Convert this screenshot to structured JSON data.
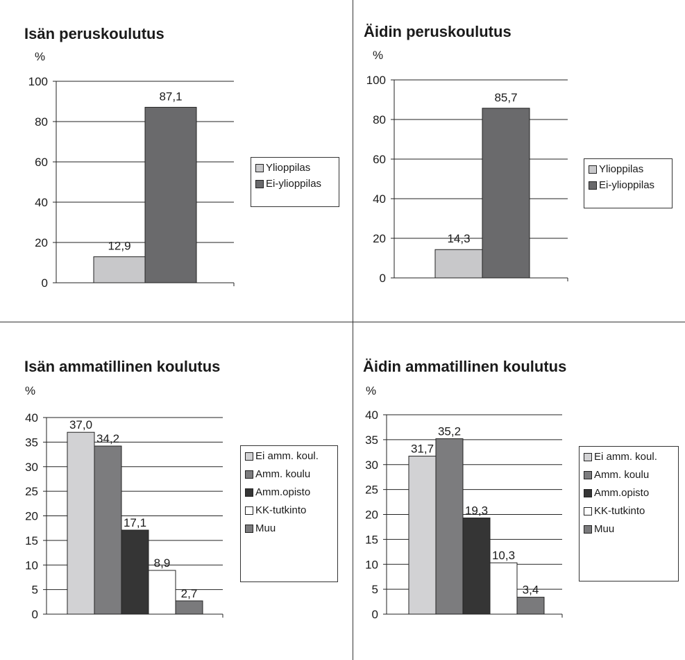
{
  "colors": {
    "ylioppilas": "#c8c8ca",
    "ei_ylioppilas": "#6a6a6c",
    "ei_amm_koul": "#d2d2d4",
    "amm_koulu": "#7c7c7e",
    "amm_opisto": "#353535",
    "kk_tutkinto": "#ffffff",
    "muu": "#7a7a7c"
  },
  "chart_data": [
    {
      "type": "bar",
      "title": "Isän peruskoulutus",
      "ylabel": "%",
      "ylim": [
        0,
        100
      ],
      "yticks": [
        "0",
        "20",
        "40",
        "60",
        "80",
        "100"
      ],
      "grid": true,
      "legend_position": "right",
      "series": [
        {
          "name": "Ylioppilas",
          "values": [
            12.9
          ],
          "label": "12,9",
          "color": "#c8c8ca"
        },
        {
          "name": "Ei-ylioppilas",
          "values": [
            87.1
          ],
          "label": "87,1",
          "color": "#6a6a6c"
        }
      ]
    },
    {
      "type": "bar",
      "title": "Äidin peruskoulutus",
      "ylabel": "%",
      "ylim": [
        0,
        100
      ],
      "yticks": [
        "0",
        "20",
        "40",
        "60",
        "80",
        "100"
      ],
      "grid": true,
      "legend_position": "right",
      "series": [
        {
          "name": "Ylioppilas",
          "values": [
            14.3
          ],
          "label": "14,3",
          "color": "#c8c8ca"
        },
        {
          "name": "Ei-ylioppilas",
          "values": [
            85.7
          ],
          "label": "85,7",
          "color": "#6a6a6c"
        }
      ]
    },
    {
      "type": "bar",
      "title": "Isän ammatillinen koulutus",
      "ylabel": "%",
      "ylim": [
        0,
        40
      ],
      "yticks": [
        "0",
        "5",
        "10",
        "15",
        "20",
        "25",
        "30",
        "35",
        "40"
      ],
      "grid": true,
      "legend_position": "right",
      "series": [
        {
          "name": "Ei amm. koul.",
          "values": [
            37.0
          ],
          "label": "37,0",
          "color": "#d2d2d4"
        },
        {
          "name": "Amm. koulu",
          "values": [
            34.2
          ],
          "label": "34,2",
          "color": "#7c7c7e"
        },
        {
          "name": "Amm.opisto",
          "values": [
            17.1
          ],
          "label": "17,1",
          "color": "#353535"
        },
        {
          "name": "KK-tutkinto",
          "values": [
            8.9
          ],
          "label": "8,9",
          "color": "#ffffff"
        },
        {
          "name": "Muu",
          "values": [
            2.7
          ],
          "label": "2,7",
          "color": "#7a7a7c"
        }
      ]
    },
    {
      "type": "bar",
      "title": "Äidin ammatillinen koulutus",
      "ylabel": "%",
      "ylim": [
        0,
        40
      ],
      "yticks": [
        "0",
        "5",
        "10",
        "15",
        "20",
        "25",
        "30",
        "35",
        "40"
      ],
      "grid": true,
      "legend_position": "right",
      "series": [
        {
          "name": "Ei amm. koul.",
          "values": [
            31.7
          ],
          "label": "31,7",
          "color": "#d2d2d4"
        },
        {
          "name": "Amm. koulu",
          "values": [
            35.2
          ],
          "label": "35,2",
          "color": "#7c7c7e"
        },
        {
          "name": "Amm.opisto",
          "values": [
            19.3
          ],
          "label": "19,3",
          "color": "#353535"
        },
        {
          "name": "KK-tutkinto",
          "values": [
            10.3
          ],
          "label": "10,3",
          "color": "#ffffff"
        },
        {
          "name": "Muu",
          "values": [
            3.4
          ],
          "label": "3,4",
          "color": "#7a7a7c"
        }
      ]
    }
  ]
}
